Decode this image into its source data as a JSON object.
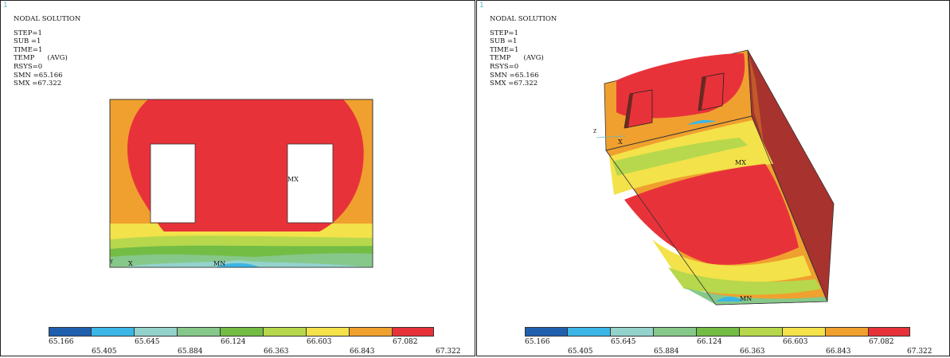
{
  "colors": [
    "#1f5fae",
    "#3bb6e6",
    "#94d3cc",
    "#86c88a",
    "#73bd45",
    "#b7d84c",
    "#f3e24a",
    "#f0a02e",
    "#e8323a"
  ],
  "legend_ticks_top": [
    "65.166",
    "65.645",
    "66.124",
    "66.603",
    "67.082"
  ],
  "legend_ticks_bottom": [
    "65.405",
    "65.884",
    "66.363",
    "66.843",
    "67.322"
  ],
  "panels": [
    {
      "window_number": "1",
      "title": "NODAL SOLUTION",
      "lines": [
        "STEP=1",
        "SUB =1",
        "TIME=1",
        "TEMP      (AVG)",
        "RSYS=0",
        "SMN =65.166",
        "SMX =67.322"
      ],
      "labels": {
        "max": "MX",
        "min": "MN",
        "axis": "X",
        "axis_small": "Y"
      }
    },
    {
      "window_number": "1",
      "title": "NODAL SOLUTION",
      "lines": [
        "STEP=1",
        "SUB =1",
        "TIME=1",
        "TEMP      (AVG)",
        "RSYS=0",
        "SMN =65.166",
        "SMX =67.322"
      ],
      "labels": {
        "max": "MX",
        "min": "MN",
        "axis": "X",
        "axis_small": "Z"
      }
    }
  ]
}
